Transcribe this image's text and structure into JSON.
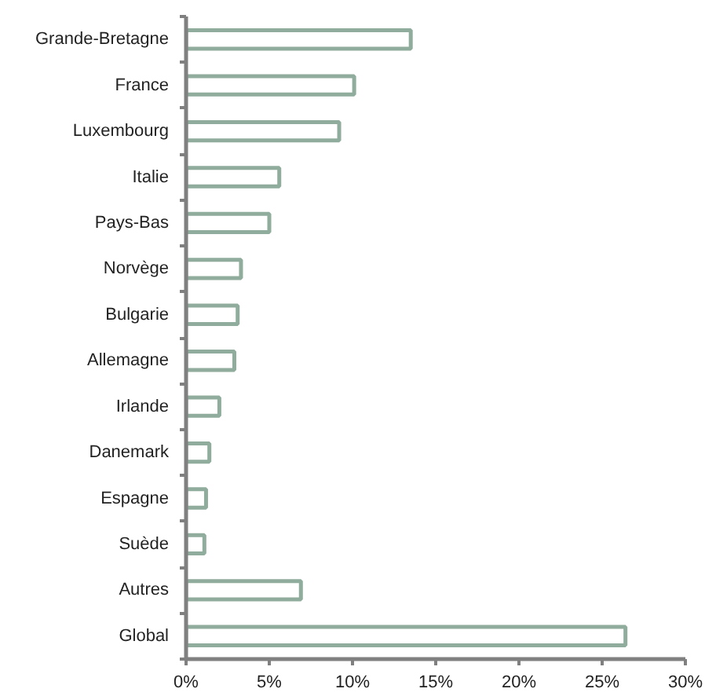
{
  "chart_data": {
    "type": "bar",
    "orientation": "horizontal",
    "categories": [
      "Grande-Bretagne",
      "France",
      "Luxembourg",
      "Italie",
      "Pays-Bas",
      "Norvège",
      "Bulgarie",
      "Allemagne",
      "Irlande",
      "Danemark",
      "Espagne",
      "Suède",
      "Autres",
      "Global"
    ],
    "values": [
      13.5,
      10.1,
      9.2,
      5.6,
      5.0,
      3.3,
      3.1,
      2.9,
      2.0,
      1.4,
      1.2,
      1.1,
      6.9,
      26.4
    ],
    "color": "#8fac9c",
    "xlim": [
      0,
      30
    ],
    "xticks": [
      {
        "value": 0,
        "label": "0%"
      },
      {
        "value": 5,
        "label": "5%"
      },
      {
        "value": 10,
        "label": "10%"
      },
      {
        "value": 15,
        "label": "15%"
      },
      {
        "value": 20,
        "label": "20%"
      },
      {
        "value": 25,
        "label": "25%"
      },
      {
        "value": 30,
        "label": "30%"
      }
    ],
    "grid": false
  }
}
